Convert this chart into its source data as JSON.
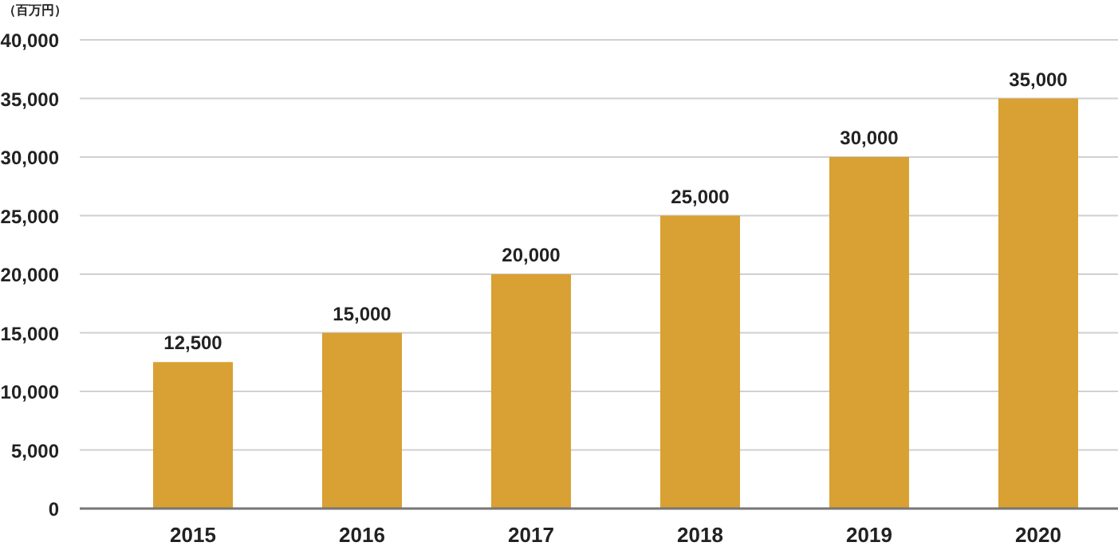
{
  "chart_data": {
    "type": "bar",
    "ylabel": "（百万円）",
    "categories": [
      "2015",
      "2016",
      "2017",
      "2018",
      "2019",
      "2020"
    ],
    "values": [
      12500,
      15000,
      20000,
      25000,
      30000,
      35000
    ],
    "color": "#d9a034",
    "ylim": [
      0,
      40000
    ],
    "yticks": [
      {
        "value": 0,
        "label": "0"
      },
      {
        "value": 5000,
        "label": "5,000"
      },
      {
        "value": 10000,
        "label": "10,000"
      },
      {
        "value": 15000,
        "label": "15,000"
      },
      {
        "value": 20000,
        "label": "20,000"
      },
      {
        "value": 25000,
        "label": "25,000"
      },
      {
        "value": 30000,
        "label": "30,000"
      },
      {
        "value": 35000,
        "label": "35,000"
      },
      {
        "value": 40000,
        "label": "40,000"
      }
    ],
    "value_labels": [
      "12,500",
      "15,000",
      "20,000",
      "25,000",
      "30,000",
      "35,000"
    ],
    "grid": "y"
  }
}
